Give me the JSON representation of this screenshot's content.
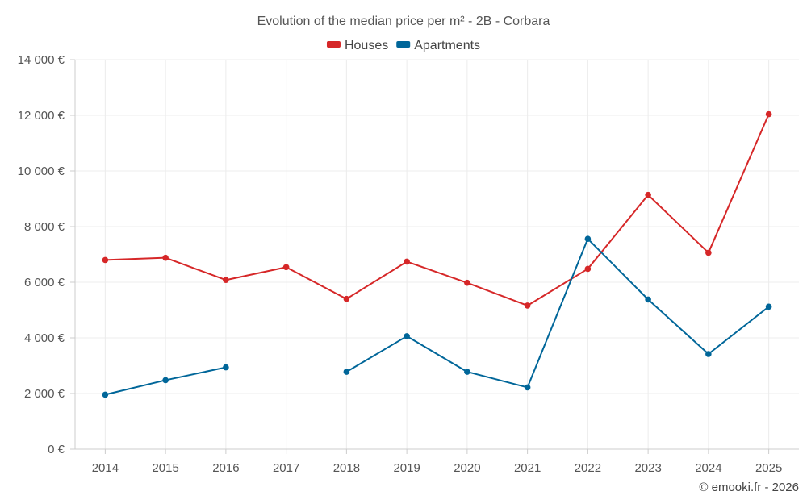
{
  "chart_data": {
    "type": "line",
    "title": "Evolution of the median price per m² - 2B - Corbara",
    "categories": [
      "2014",
      "2015",
      "2016",
      "2017",
      "2018",
      "2019",
      "2020",
      "2021",
      "2022",
      "2023",
      "2024",
      "2025"
    ],
    "series": [
      {
        "name": "Houses",
        "color": "#d62728",
        "values": [
          6800,
          6880,
          6080,
          6540,
          5400,
          6740,
          5980,
          5160,
          6480,
          9140,
          7060,
          12040
        ]
      },
      {
        "name": "Apartments",
        "color": "#006699",
        "values": [
          1960,
          2480,
          2940,
          null,
          2780,
          4060,
          2780,
          2220,
          7560,
          5380,
          3420,
          5120
        ]
      }
    ],
    "ylim": [
      0,
      14000
    ],
    "yticks": [
      0,
      2000,
      4000,
      6000,
      8000,
      10000,
      12000,
      14000
    ],
    "ytick_labels": [
      "0 €",
      "2 000 €",
      "4 000 €",
      "6 000 €",
      "8 000 €",
      "10 000 €",
      "12 000 €",
      "14 000 €"
    ],
    "xlabel": "",
    "ylabel": "",
    "grid": true,
    "legend_position": "top-center"
  },
  "credit": "© emooki.fr - 2026"
}
